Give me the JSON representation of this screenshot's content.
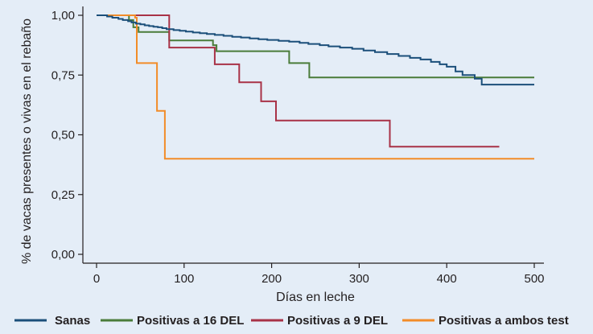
{
  "chart_data": {
    "type": "line",
    "step": true,
    "xlabel": "Días en leche",
    "ylabel": "% de vacas presentes o vivas en el rebaño",
    "xlim": [
      0,
      500
    ],
    "ylim": [
      0,
      1
    ],
    "x_ticks": [
      0,
      100,
      200,
      300,
      400,
      500
    ],
    "x_tick_labels": [
      "0",
      "100",
      "200",
      "300",
      "400",
      "500"
    ],
    "y_ticks": [
      0,
      0.25,
      0.5,
      0.75,
      1.0
    ],
    "y_tick_labels": [
      "0,00",
      "0,25",
      "0,50",
      "0,75",
      "1,00"
    ],
    "grid": false,
    "legend_position": "bottom",
    "series": [
      {
        "name": "Sanas",
        "color": "#1b4f7a",
        "x": [
          0,
          12,
          18,
          25,
          30,
          36,
          40,
          45,
          50,
          55,
          60,
          65,
          70,
          75,
          80,
          88,
          95,
          102,
          110,
          118,
          126,
          135,
          145,
          155,
          165,
          175,
          185,
          195,
          208,
          220,
          232,
          242,
          255,
          265,
          278,
          292,
          305,
          318,
          332,
          345,
          358,
          370,
          382,
          392,
          400,
          410,
          418,
          432,
          440,
          470,
          500
        ],
        "y": [
          1.0,
          0.995,
          0.99,
          0.985,
          0.98,
          0.975,
          0.97,
          0.965,
          0.962,
          0.958,
          0.955,
          0.952,
          0.95,
          0.946,
          0.942,
          0.938,
          0.935,
          0.932,
          0.928,
          0.925,
          0.922,
          0.918,
          0.914,
          0.91,
          0.907,
          0.903,
          0.9,
          0.897,
          0.893,
          0.89,
          0.885,
          0.88,
          0.875,
          0.87,
          0.865,
          0.86,
          0.853,
          0.846,
          0.838,
          0.83,
          0.822,
          0.815,
          0.805,
          0.795,
          0.785,
          0.765,
          0.75,
          0.735,
          0.71,
          0.71,
          0.71
        ]
      },
      {
        "name": "Positivas a 16 DEL",
        "color": "#4a7c3a",
        "x": [
          0,
          37,
          42,
          48,
          83,
          133,
          137,
          220,
          243,
          500
        ],
        "y": [
          1.0,
          0.98,
          0.95,
          0.93,
          0.895,
          0.875,
          0.85,
          0.8,
          0.74,
          0.74
        ]
      },
      {
        "name": "Positivas a 9 DEL",
        "color": "#a83247",
        "x": [
          0,
          83,
          83,
          135,
          163,
          188,
          205,
          335,
          460
        ],
        "y": [
          1.0,
          0.865,
          0.865,
          0.795,
          0.72,
          0.64,
          0.56,
          0.45,
          0.45
        ]
      },
      {
        "name": "Positivas a ambos test",
        "color": "#f28c28",
        "x": [
          0,
          44,
          46,
          69,
          78,
          500
        ],
        "y": [
          1.0,
          0.99,
          0.8,
          0.6,
          0.4,
          0.4
        ]
      }
    ]
  }
}
